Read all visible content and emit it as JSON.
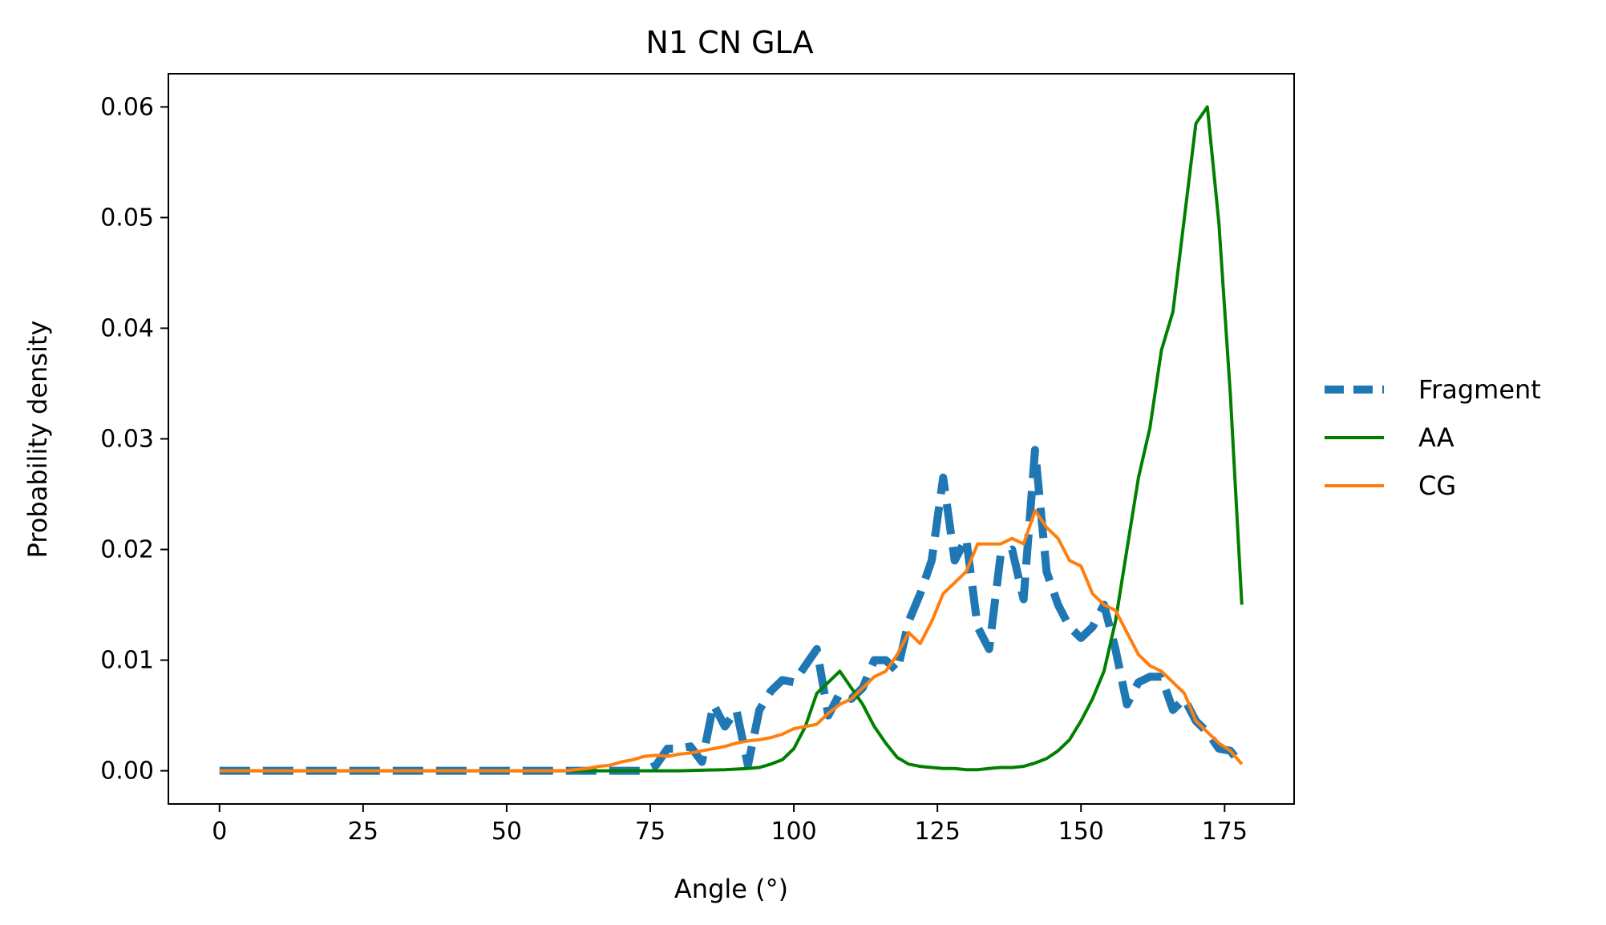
{
  "chart_data": {
    "type": "line",
    "title": "N1 CN GLA",
    "xlabel": "Angle (°)",
    "ylabel": "Probability density",
    "xlim": [
      -8.9,
      187.1
    ],
    "ylim": [
      -0.003,
      0.063
    ],
    "xticks": [
      {
        "value": 0,
        "label": "0"
      },
      {
        "value": 25,
        "label": "25"
      },
      {
        "value": 50,
        "label": "50"
      },
      {
        "value": 75,
        "label": "75"
      },
      {
        "value": 100,
        "label": "100"
      },
      {
        "value": 125,
        "label": "125"
      },
      {
        "value": 150,
        "label": "150"
      },
      {
        "value": 175,
        "label": "175"
      }
    ],
    "yticks": [
      {
        "value": 0.0,
        "label": "0.00"
      },
      {
        "value": 0.01,
        "label": "0.01"
      },
      {
        "value": 0.02,
        "label": "0.02"
      },
      {
        "value": 0.03,
        "label": "0.03"
      },
      {
        "value": 0.04,
        "label": "0.04"
      },
      {
        "value": 0.05,
        "label": "0.05"
      },
      {
        "value": 0.06,
        "label": "0.06"
      }
    ],
    "grid": false,
    "legend_position": "right, outside plot",
    "series": [
      {
        "name": "Fragment",
        "color": "#1f77b4",
        "style": "dashed",
        "x": [
          0,
          62,
          74,
          76,
          78,
          80,
          82,
          84,
          86,
          88,
          90,
          92,
          94,
          96,
          98,
          100,
          102,
          104,
          106,
          108,
          110,
          112,
          114,
          116,
          118,
          120,
          122,
          124,
          126,
          128,
          130,
          132,
          134,
          136,
          138,
          140,
          142,
          144,
          146,
          148,
          150,
          152,
          154,
          156,
          158,
          160,
          162,
          164,
          166,
          168,
          170,
          172,
          174,
          176,
          178
        ],
        "y": [
          0.0,
          0.0,
          0.0,
          0.0005,
          0.002,
          0.002,
          0.0022,
          0.0008,
          0.006,
          0.004,
          0.0055,
          0.0005,
          0.0055,
          0.0072,
          0.0082,
          0.008,
          0.0095,
          0.011,
          0.005,
          0.007,
          0.0065,
          0.0075,
          0.01,
          0.01,
          0.009,
          0.0135,
          0.016,
          0.019,
          0.0265,
          0.019,
          0.021,
          0.013,
          0.011,
          0.0195,
          0.02,
          0.0155,
          0.029,
          0.018,
          0.015,
          0.013,
          0.012,
          0.013,
          0.015,
          0.011,
          0.006,
          0.008,
          0.0085,
          0.0085,
          0.0055,
          0.0065,
          0.0045,
          0.0035,
          0.002,
          0.0018,
          0.0005
        ]
      },
      {
        "name": "AA",
        "color": "#008000",
        "style": "solid",
        "x": [
          0,
          60,
          70,
          80,
          88,
          92,
          94,
          96,
          98,
          100,
          102,
          104,
          106,
          108,
          110,
          112,
          114,
          116,
          118,
          120,
          122,
          124,
          126,
          128,
          130,
          132,
          134,
          136,
          138,
          140,
          142,
          144,
          146,
          148,
          150,
          152,
          154,
          156,
          158,
          160,
          162,
          164,
          166,
          168,
          170,
          172,
          174,
          176,
          178
        ],
        "y": [
          0.0,
          0.0,
          0.0,
          0.0,
          0.0001,
          0.0002,
          0.0003,
          0.0006,
          0.001,
          0.002,
          0.004,
          0.007,
          0.008,
          0.009,
          0.0075,
          0.006,
          0.004,
          0.0025,
          0.0012,
          0.0006,
          0.0004,
          0.0003,
          0.0002,
          0.0002,
          0.0001,
          0.0001,
          0.0002,
          0.0003,
          0.0003,
          0.0004,
          0.0007,
          0.0011,
          0.0018,
          0.0028,
          0.0045,
          0.0065,
          0.009,
          0.0135,
          0.02,
          0.0265,
          0.031,
          0.038,
          0.0415,
          0.05,
          0.0585,
          0.06,
          0.0495,
          0.034,
          0.015
        ]
      },
      {
        "name": "CG",
        "color": "#ff7f0e",
        "style": "solid",
        "x": [
          0,
          60,
          64,
          66,
          68,
          70,
          72,
          74,
          76,
          78,
          80,
          82,
          84,
          86,
          88,
          90,
          92,
          94,
          96,
          98,
          100,
          102,
          104,
          106,
          108,
          110,
          112,
          114,
          116,
          118,
          120,
          122,
          124,
          126,
          128,
          130,
          132,
          134,
          136,
          138,
          140,
          142,
          144,
          146,
          148,
          150,
          152,
          154,
          156,
          158,
          160,
          162,
          164,
          166,
          168,
          170,
          172,
          174,
          176,
          178
        ],
        "y": [
          0.0,
          0.0,
          0.0002,
          0.0004,
          0.0005,
          0.0008,
          0.001,
          0.0013,
          0.0014,
          0.0013,
          0.0015,
          0.0016,
          0.0018,
          0.002,
          0.0022,
          0.0025,
          0.0027,
          0.0028,
          0.003,
          0.0033,
          0.0038,
          0.004,
          0.0042,
          0.0052,
          0.006,
          0.0065,
          0.0075,
          0.0085,
          0.009,
          0.0105,
          0.0125,
          0.0115,
          0.0135,
          0.016,
          0.017,
          0.018,
          0.0205,
          0.0205,
          0.0205,
          0.021,
          0.0205,
          0.0235,
          0.022,
          0.021,
          0.019,
          0.0185,
          0.016,
          0.015,
          0.0145,
          0.0125,
          0.0105,
          0.0095,
          0.009,
          0.008,
          0.007,
          0.0045,
          0.0035,
          0.0025,
          0.0018,
          0.0006
        ]
      }
    ]
  }
}
